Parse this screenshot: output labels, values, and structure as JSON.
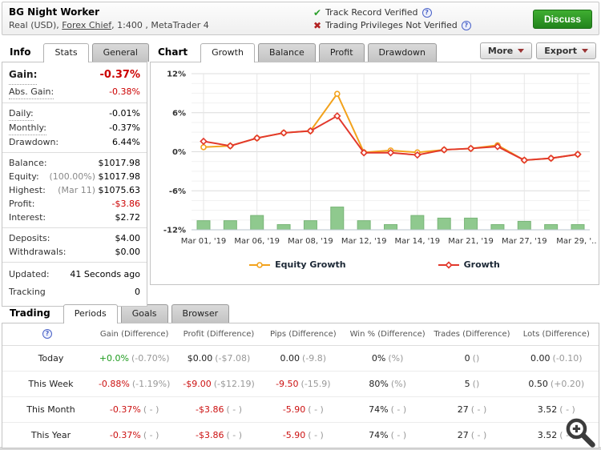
{
  "header": {
    "title": "BG Night Worker",
    "subtitle_pre": "Real (USD), ",
    "broker_link": "Forex Chief",
    "subtitle_post": ", 1:400 , MetaTrader 4",
    "verifications": [
      {
        "icon": "check-icon",
        "text": "Track Record Verified"
      },
      {
        "icon": "cross-icon",
        "text": "Trading Privileges Not Verified"
      }
    ],
    "discuss_label": "Discuss"
  },
  "info_panel": {
    "tabs": [
      {
        "label": "Info",
        "kind": "label"
      },
      {
        "label": "Stats",
        "kind": "active"
      },
      {
        "label": "General",
        "kind": "inactive"
      }
    ],
    "groups": [
      {
        "rows": [
          {
            "label": "Gain:",
            "value": "-0.37%",
            "label_style": "big",
            "value_style": "red-big",
            "dotted": true
          },
          {
            "label": "Abs. Gain:",
            "value": "-0.38%",
            "value_style": "red",
            "dotted": true
          }
        ]
      },
      {
        "rows": [
          {
            "label": "Daily:",
            "value": "-0.01%",
            "dotted": true
          },
          {
            "label": "Monthly:",
            "value": "-0.37%",
            "dotted": true
          },
          {
            "label": "Drawdown:",
            "value": "6.44%"
          }
        ]
      },
      {
        "rows": [
          {
            "label": "Balance:",
            "value": "$1017.98"
          },
          {
            "label": "Equity:",
            "prefix": "(100.00%) ",
            "value": "$1017.98"
          },
          {
            "label": "Highest:",
            "prefix": "(Mar 11) ",
            "value": "$1075.63"
          },
          {
            "label": "Profit:",
            "value": "-$3.86",
            "value_style": "red"
          },
          {
            "label": "Interest:",
            "value": "$2.72"
          }
        ]
      },
      {
        "rows": [
          {
            "label": "Deposits:",
            "value": "$4.00"
          },
          {
            "label": "Withdrawals:",
            "value": "$0.00"
          }
        ]
      },
      {
        "rows": [
          {
            "label": "Updated:",
            "value": "41 Seconds ago",
            "spaced": true
          },
          {
            "label": "Tracking",
            "value": "0",
            "spaced": true
          }
        ]
      }
    ]
  },
  "chart_section": {
    "tabs": [
      {
        "label": "Chart",
        "kind": "label"
      },
      {
        "label": "Growth",
        "kind": "active"
      },
      {
        "label": "Balance",
        "kind": "inactive"
      },
      {
        "label": "Profit",
        "kind": "inactive"
      },
      {
        "label": "Drawdown",
        "kind": "inactive"
      }
    ],
    "more_label": "More",
    "export_label": "Export"
  },
  "chart_data": {
    "type": "line",
    "title": "",
    "xlabel": "",
    "ylabel": "",
    "ylim": [
      -12,
      12
    ],
    "yticks": [
      {
        "value": 12,
        "label": "12%"
      },
      {
        "value": 6,
        "label": "6%"
      },
      {
        "value": 0,
        "label": "0%"
      },
      {
        "value": -6,
        "label": "-6%"
      },
      {
        "value": -12,
        "label": "-12%"
      }
    ],
    "minor_grid_step": 1.5,
    "x_tick_indices": [
      0,
      2,
      4,
      6,
      8,
      10,
      12,
      14
    ],
    "x_tick_labels": [
      "Mar 01, '19",
      "Mar 06, '19",
      "Mar 08, '19",
      "Mar 12, '19",
      "Mar 14, '19",
      "Mar 21, '19",
      "Mar 27, '19",
      "Mar 29, '..."
    ],
    "series": [
      {
        "name": "Equity Growth",
        "color": "#f2a21c",
        "marker": "circle",
        "values": [
          0.7,
          0.9,
          2.1,
          2.9,
          3.2,
          8.9,
          -0.1,
          0.2,
          -0.1,
          0.3,
          0.5,
          1.0,
          -1.3,
          -1.0,
          -0.4
        ]
      },
      {
        "name": "Growth",
        "color": "#e2382c",
        "marker": "diamond",
        "values": [
          1.6,
          0.9,
          2.1,
          2.9,
          3.2,
          5.5,
          -0.15,
          -0.15,
          -0.5,
          0.3,
          0.5,
          0.8,
          -1.3,
          -1.0,
          -0.4
        ]
      }
    ],
    "volume_bars": {
      "color": "#8fc98e",
      "border_color": "#79b578",
      "baseline": -12,
      "heights": [
        1.4,
        1.4,
        2.2,
        0.8,
        1.4,
        3.5,
        1.4,
        0.8,
        2.2,
        1.8,
        1.8,
        0.8,
        1.3,
        0.8,
        0.8
      ]
    },
    "legend_position": "bottom"
  },
  "trading_section": {
    "tabs": [
      {
        "label": "Trading",
        "kind": "label"
      },
      {
        "label": "Periods",
        "kind": "active"
      },
      {
        "label": "Goals",
        "kind": "inactive"
      },
      {
        "label": "Browser",
        "kind": "inactive"
      }
    ],
    "table": {
      "headers": [
        "Gain (Difference)",
        "Profit (Difference)",
        "Pips (Difference)",
        "Win % (Difference)",
        "Trades (Difference)",
        "Lots (Difference)"
      ],
      "rows": [
        {
          "period": "Today",
          "cells": [
            {
              "main": "+0.0%",
              "paren": "(-0.70%)",
              "color": "green"
            },
            {
              "main": "$0.00",
              "paren": "(-$7.08)",
              "color": "dark"
            },
            {
              "main": "0.00",
              "paren": "(-9.8)",
              "color": "dark"
            },
            {
              "main": "0%",
              "paren": "(%)",
              "color": "dark"
            },
            {
              "main": "0",
              "paren": "()",
              "color": "dark"
            },
            {
              "main": "0.00",
              "paren": "(-0.10)",
              "color": "dark"
            }
          ]
        },
        {
          "period": "This Week",
          "cells": [
            {
              "main": "-0.88%",
              "paren": "(-1.19%)",
              "color": "red"
            },
            {
              "main": "-$9.00",
              "paren": "(-$12.19)",
              "color": "red"
            },
            {
              "main": "-9.50",
              "paren": "(-15.9)",
              "color": "red"
            },
            {
              "main": "80%",
              "paren": "(%)",
              "color": "dark"
            },
            {
              "main": "5",
              "paren": "()",
              "color": "dark"
            },
            {
              "main": "0.50",
              "paren": "(+0.20)",
              "color": "dark"
            }
          ]
        },
        {
          "period": "This Month",
          "cells": [
            {
              "main": "-0.37%",
              "paren": "( - )",
              "color": "red"
            },
            {
              "main": "-$3.86",
              "paren": "( - )",
              "color": "red"
            },
            {
              "main": "-5.90",
              "paren": "( - )",
              "color": "red"
            },
            {
              "main": "74%",
              "paren": "( - )",
              "color": "dark"
            },
            {
              "main": "27",
              "paren": "( - )",
              "color": "dark"
            },
            {
              "main": "3.52",
              "paren": "( - )",
              "color": "dark"
            }
          ]
        },
        {
          "period": "This Year",
          "cells": [
            {
              "main": "-0.37%",
              "paren": "( - )",
              "color": "red"
            },
            {
              "main": "-$3.86",
              "paren": "( - )",
              "color": "red"
            },
            {
              "main": "-5.90",
              "paren": "( - )",
              "color": "red"
            },
            {
              "main": "74%",
              "paren": "( - )",
              "color": "dark"
            },
            {
              "main": "27",
              "paren": "( - )",
              "color": "dark"
            },
            {
              "main": "3.52",
              "paren": "( - )",
              "color": "dark"
            }
          ]
        }
      ]
    }
  },
  "colors": {
    "positive": "#1f9c1f",
    "negative": "#cc1111",
    "equity_line": "#f2a21c",
    "growth_line": "#e2382c",
    "volume_bar": "#8fc98e",
    "discuss_button": "#2f9428"
  }
}
